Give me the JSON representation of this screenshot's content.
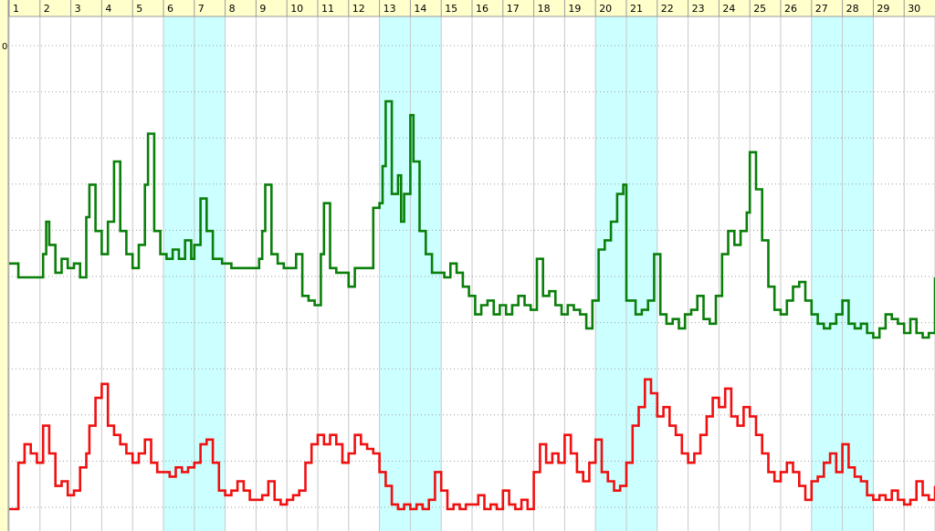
{
  "chart_data": {
    "type": "line",
    "title": "",
    "xlabel": "",
    "ylabel": "",
    "x_categories": [
      "1",
      "2",
      "3",
      "4",
      "5",
      "6",
      "7",
      "8",
      "9",
      "10",
      "11",
      "12",
      "13",
      "14",
      "15",
      "16",
      "17",
      "18",
      "19",
      "20",
      "21",
      "22",
      "23",
      "24",
      "25",
      "26",
      "27",
      "28",
      "29",
      "30"
    ],
    "visible_y_tick_label": "0",
    "ylim": [
      0,
      100
    ],
    "grid": true,
    "shaded_day_groups": [
      [
        "6",
        "7"
      ],
      [
        "13",
        "14"
      ],
      [
        "20",
        "21"
      ],
      [
        "27",
        "28"
      ]
    ],
    "colors": {
      "header_bg": "#FFFFCC",
      "left_strip_bg": "#FFFFCC",
      "shade_bg": "#CCFFFF",
      "grid_dotted": "#9E9E9E",
      "grid_solid": "#C8C8C8",
      "series_green": "#0A7F0A",
      "series_red": "#F01010"
    },
    "series": [
      {
        "color": "series_green",
        "points": [
          [
            0.0,
            53
          ],
          [
            0.3,
            50
          ],
          [
            0.6,
            50
          ],
          [
            0.9,
            50
          ],
          [
            1.1,
            55
          ],
          [
            1.2,
            62
          ],
          [
            1.3,
            57
          ],
          [
            1.5,
            51
          ],
          [
            1.7,
            54
          ],
          [
            1.9,
            52
          ],
          [
            2.1,
            53
          ],
          [
            2.3,
            50
          ],
          [
            2.5,
            63
          ],
          [
            2.6,
            70
          ],
          [
            2.8,
            60
          ],
          [
            3.0,
            55
          ],
          [
            3.2,
            62
          ],
          [
            3.4,
            75
          ],
          [
            3.6,
            60
          ],
          [
            3.8,
            55
          ],
          [
            4.0,
            52
          ],
          [
            4.2,
            57
          ],
          [
            4.4,
            70
          ],
          [
            4.5,
            81
          ],
          [
            4.7,
            60
          ],
          [
            4.9,
            55
          ],
          [
            5.1,
            54
          ],
          [
            5.3,
            56
          ],
          [
            5.5,
            54
          ],
          [
            5.7,
            58
          ],
          [
            5.9,
            54
          ],
          [
            6.0,
            57
          ],
          [
            6.2,
            67
          ],
          [
            6.4,
            60
          ],
          [
            6.6,
            54
          ],
          [
            6.9,
            53
          ],
          [
            7.2,
            52
          ],
          [
            7.5,
            52
          ],
          [
            7.9,
            52
          ],
          [
            8.1,
            54
          ],
          [
            8.2,
            60
          ],
          [
            8.3,
            70
          ],
          [
            8.5,
            55
          ],
          [
            8.7,
            53
          ],
          [
            8.9,
            52
          ],
          [
            9.1,
            52
          ],
          [
            9.3,
            55
          ],
          [
            9.5,
            46
          ],
          [
            9.7,
            45
          ],
          [
            9.9,
            44
          ],
          [
            10.1,
            55
          ],
          [
            10.2,
            66
          ],
          [
            10.4,
            52
          ],
          [
            10.6,
            51
          ],
          [
            10.8,
            51
          ],
          [
            11.0,
            48
          ],
          [
            11.2,
            52
          ],
          [
            11.4,
            52
          ],
          [
            11.6,
            52
          ],
          [
            11.8,
            65
          ],
          [
            12.0,
            66
          ],
          [
            12.1,
            74
          ],
          [
            12.2,
            88
          ],
          [
            12.4,
            68
          ],
          [
            12.6,
            72
          ],
          [
            12.7,
            62
          ],
          [
            12.8,
            68
          ],
          [
            13.0,
            85
          ],
          [
            13.1,
            75
          ],
          [
            13.3,
            60
          ],
          [
            13.5,
            55
          ],
          [
            13.7,
            51
          ],
          [
            13.9,
            51
          ],
          [
            14.1,
            50
          ],
          [
            14.3,
            53
          ],
          [
            14.5,
            51
          ],
          [
            14.7,
            48
          ],
          [
            14.9,
            46
          ],
          [
            15.1,
            42
          ],
          [
            15.3,
            44
          ],
          [
            15.5,
            45
          ],
          [
            15.7,
            42
          ],
          [
            15.9,
            44
          ],
          [
            16.1,
            42
          ],
          [
            16.3,
            44
          ],
          [
            16.5,
            46
          ],
          [
            16.7,
            44
          ],
          [
            16.9,
            43
          ],
          [
            17.1,
            54
          ],
          [
            17.3,
            46
          ],
          [
            17.5,
            47
          ],
          [
            17.7,
            44
          ],
          [
            17.9,
            42
          ],
          [
            18.1,
            44
          ],
          [
            18.3,
            43
          ],
          [
            18.5,
            42
          ],
          [
            18.7,
            39
          ],
          [
            18.9,
            45
          ],
          [
            19.1,
            56
          ],
          [
            19.3,
            58
          ],
          [
            19.5,
            62
          ],
          [
            19.7,
            68
          ],
          [
            19.9,
            70
          ],
          [
            20.0,
            45
          ],
          [
            20.3,
            42
          ],
          [
            20.5,
            43
          ],
          [
            20.7,
            45
          ],
          [
            20.9,
            55
          ],
          [
            21.1,
            42
          ],
          [
            21.3,
            40
          ],
          [
            21.5,
            41
          ],
          [
            21.7,
            39
          ],
          [
            21.9,
            42
          ],
          [
            22.1,
            43
          ],
          [
            22.3,
            46
          ],
          [
            22.5,
            41
          ],
          [
            22.7,
            40
          ],
          [
            22.9,
            46
          ],
          [
            23.1,
            55
          ],
          [
            23.3,
            60
          ],
          [
            23.5,
            57
          ],
          [
            23.7,
            60
          ],
          [
            23.9,
            64
          ],
          [
            24.0,
            77
          ],
          [
            24.2,
            69
          ],
          [
            24.4,
            58
          ],
          [
            24.6,
            48
          ],
          [
            24.8,
            43
          ],
          [
            25.0,
            42
          ],
          [
            25.2,
            45
          ],
          [
            25.4,
            48
          ],
          [
            25.6,
            49
          ],
          [
            25.8,
            45
          ],
          [
            26.0,
            42
          ],
          [
            26.2,
            40
          ],
          [
            26.4,
            39
          ],
          [
            26.6,
            40
          ],
          [
            26.8,
            42
          ],
          [
            27.0,
            45
          ],
          [
            27.2,
            40
          ],
          [
            27.4,
            39
          ],
          [
            27.6,
            40
          ],
          [
            27.8,
            38
          ],
          [
            28.0,
            37
          ],
          [
            28.2,
            39
          ],
          [
            28.4,
            42
          ],
          [
            28.6,
            41
          ],
          [
            28.8,
            40
          ],
          [
            29.0,
            38
          ],
          [
            29.2,
            41
          ],
          [
            29.4,
            38
          ],
          [
            29.6,
            37
          ],
          [
            29.8,
            38
          ],
          [
            30.0,
            50
          ]
        ]
      },
      {
        "color": "series_red",
        "points": [
          [
            0.0,
            0
          ],
          [
            0.3,
            10
          ],
          [
            0.5,
            14
          ],
          [
            0.7,
            12
          ],
          [
            0.9,
            10
          ],
          [
            1.1,
            18
          ],
          [
            1.3,
            12
          ],
          [
            1.5,
            5
          ],
          [
            1.7,
            6
          ],
          [
            1.9,
            3
          ],
          [
            2.1,
            4
          ],
          [
            2.3,
            9
          ],
          [
            2.5,
            12
          ],
          [
            2.6,
            18
          ],
          [
            2.8,
            24
          ],
          [
            3.0,
            27
          ],
          [
            3.2,
            18
          ],
          [
            3.4,
            16
          ],
          [
            3.6,
            14
          ],
          [
            3.8,
            12
          ],
          [
            4.0,
            10
          ],
          [
            4.2,
            12
          ],
          [
            4.4,
            15
          ],
          [
            4.6,
            10
          ],
          [
            4.8,
            8
          ],
          [
            5.0,
            8
          ],
          [
            5.2,
            7
          ],
          [
            5.4,
            9
          ],
          [
            5.6,
            8
          ],
          [
            5.8,
            9
          ],
          [
            6.0,
            10
          ],
          [
            6.2,
            14
          ],
          [
            6.4,
            15
          ],
          [
            6.6,
            10
          ],
          [
            6.8,
            4
          ],
          [
            7.0,
            3
          ],
          [
            7.2,
            4
          ],
          [
            7.4,
            6
          ],
          [
            7.6,
            4
          ],
          [
            7.8,
            2
          ],
          [
            8.0,
            2
          ],
          [
            8.2,
            3
          ],
          [
            8.4,
            6
          ],
          [
            8.6,
            2
          ],
          [
            8.8,
            1
          ],
          [
            9.0,
            2
          ],
          [
            9.2,
            3
          ],
          [
            9.4,
            4
          ],
          [
            9.6,
            10
          ],
          [
            9.8,
            14
          ],
          [
            10.0,
            16
          ],
          [
            10.2,
            14
          ],
          [
            10.4,
            16
          ],
          [
            10.6,
            14
          ],
          [
            10.8,
            10
          ],
          [
            11.0,
            12
          ],
          [
            11.2,
            16
          ],
          [
            11.4,
            14
          ],
          [
            11.6,
            13
          ],
          [
            11.8,
            12
          ],
          [
            12.0,
            8
          ],
          [
            12.2,
            5
          ],
          [
            12.4,
            1
          ],
          [
            12.6,
            0
          ],
          [
            12.8,
            1
          ],
          [
            13.0,
            0
          ],
          [
            13.2,
            1
          ],
          [
            13.4,
            0
          ],
          [
            13.6,
            2
          ],
          [
            13.8,
            8
          ],
          [
            14.0,
            4
          ],
          [
            14.2,
            0
          ],
          [
            14.4,
            1
          ],
          [
            14.6,
            0
          ],
          [
            14.8,
            1
          ],
          [
            15.0,
            1
          ],
          [
            15.2,
            3
          ],
          [
            15.4,
            0
          ],
          [
            15.6,
            1
          ],
          [
            15.8,
            0
          ],
          [
            16.0,
            4
          ],
          [
            16.2,
            1
          ],
          [
            16.4,
            0
          ],
          [
            16.6,
            2
          ],
          [
            16.8,
            0
          ],
          [
            17.0,
            8
          ],
          [
            17.2,
            14
          ],
          [
            17.4,
            10
          ],
          [
            17.6,
            12
          ],
          [
            17.8,
            10
          ],
          [
            18.0,
            16
          ],
          [
            18.2,
            12
          ],
          [
            18.4,
            8
          ],
          [
            18.6,
            6
          ],
          [
            18.8,
            10
          ],
          [
            19.0,
            15
          ],
          [
            19.2,
            8
          ],
          [
            19.4,
            6
          ],
          [
            19.6,
            4
          ],
          [
            19.8,
            5
          ],
          [
            20.0,
            10
          ],
          [
            20.2,
            18
          ],
          [
            20.4,
            22
          ],
          [
            20.6,
            28
          ],
          [
            20.8,
            25
          ],
          [
            21.0,
            20
          ],
          [
            21.2,
            22
          ],
          [
            21.4,
            18
          ],
          [
            21.6,
            16
          ],
          [
            21.8,
            12
          ],
          [
            22.0,
            10
          ],
          [
            22.2,
            12
          ],
          [
            22.4,
            16
          ],
          [
            22.6,
            20
          ],
          [
            22.8,
            24
          ],
          [
            23.0,
            22
          ],
          [
            23.2,
            26
          ],
          [
            23.4,
            20
          ],
          [
            23.6,
            18
          ],
          [
            23.8,
            22
          ],
          [
            24.0,
            20
          ],
          [
            24.2,
            16
          ],
          [
            24.4,
            12
          ],
          [
            24.6,
            8
          ],
          [
            24.8,
            6
          ],
          [
            25.0,
            8
          ],
          [
            25.2,
            10
          ],
          [
            25.4,
            8
          ],
          [
            25.6,
            5
          ],
          [
            25.8,
            2
          ],
          [
            26.0,
            6
          ],
          [
            26.2,
            7
          ],
          [
            26.4,
            10
          ],
          [
            26.6,
            12
          ],
          [
            26.8,
            8
          ],
          [
            27.0,
            14
          ],
          [
            27.2,
            9
          ],
          [
            27.4,
            7
          ],
          [
            27.6,
            6
          ],
          [
            27.8,
            3
          ],
          [
            28.0,
            2
          ],
          [
            28.2,
            3
          ],
          [
            28.4,
            2
          ],
          [
            28.6,
            4
          ],
          [
            28.8,
            2
          ],
          [
            29.0,
            1
          ],
          [
            29.2,
            2
          ],
          [
            29.4,
            6
          ],
          [
            29.6,
            3
          ],
          [
            29.8,
            2
          ],
          [
            30.0,
            5
          ]
        ]
      }
    ]
  }
}
